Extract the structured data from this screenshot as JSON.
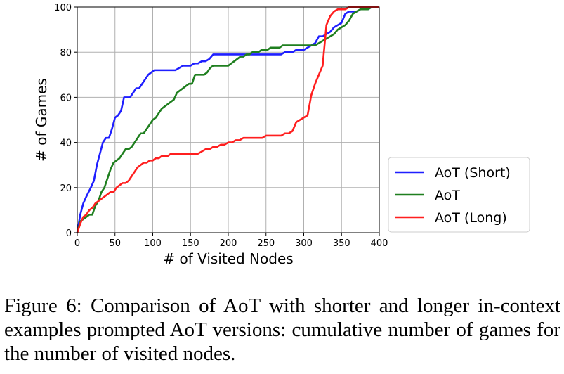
{
  "caption": "Figure 6: Comparison of AoT with shorter and longer in-context examples prompted AoT versions: cumulative number of games for the number of visited nodes.",
  "chart_data": {
    "type": "line",
    "xlabel": "# of Visited Nodes",
    "ylabel": "# of Games",
    "xlim": [
      0,
      400
    ],
    "ylim": [
      0,
      100
    ],
    "xticks": [
      0,
      50,
      100,
      150,
      200,
      250,
      300,
      350,
      400
    ],
    "yticks": [
      0,
      20,
      40,
      60,
      80,
      100
    ],
    "grid": true,
    "legend_position": "outside-right-bottom",
    "series": [
      {
        "name": "AoT (Short)",
        "color": "#1f1fff",
        "x": [
          0,
          4,
          8,
          12,
          18,
          22,
          26,
          30,
          34,
          38,
          42,
          46,
          50,
          54,
          58,
          62,
          66,
          70,
          74,
          78,
          82,
          86,
          90,
          94,
          98,
          102,
          106,
          110,
          114,
          118,
          122,
          126,
          130,
          140,
          150,
          155,
          160,
          165,
          170,
          175,
          180,
          185,
          190,
          195,
          200,
          210,
          220,
          230,
          240,
          250,
          260,
          270,
          275,
          280,
          285,
          290,
          295,
          300,
          305,
          310,
          315,
          320,
          325,
          330,
          335,
          340,
          345,
          350,
          355,
          360,
          365,
          370,
          375,
          380,
          385,
          390,
          395,
          400
        ],
        "y": [
          0,
          8,
          13,
          16,
          20,
          23,
          30,
          35,
          40,
          42,
          42,
          46,
          51,
          52,
          54,
          60,
          60,
          60,
          62,
          64,
          64,
          66,
          68,
          70,
          71,
          72,
          72,
          72,
          72,
          72,
          72,
          72,
          72,
          74,
          74,
          75,
          75,
          76,
          76,
          77,
          79,
          79,
          79,
          79,
          79,
          79,
          79,
          79,
          79,
          79,
          79,
          79,
          80,
          80,
          80,
          81,
          81,
          81,
          82,
          83,
          84,
          87,
          87,
          88,
          89,
          91,
          92,
          93,
          97,
          98,
          98,
          98,
          99,
          99,
          99,
          100,
          100,
          100
        ]
      },
      {
        "name": "AoT",
        "color": "#1f7f1f",
        "x": [
          0,
          4,
          8,
          12,
          16,
          20,
          24,
          28,
          32,
          36,
          40,
          44,
          48,
          52,
          56,
          60,
          64,
          68,
          72,
          76,
          80,
          84,
          88,
          92,
          96,
          100,
          104,
          108,
          112,
          116,
          120,
          124,
          128,
          132,
          136,
          140,
          144,
          148,
          152,
          156,
          160,
          164,
          168,
          172,
          176,
          180,
          184,
          188,
          192,
          196,
          200,
          204,
          208,
          212,
          216,
          220,
          224,
          228,
          232,
          236,
          240,
          244,
          248,
          252,
          256,
          260,
          264,
          268,
          272,
          276,
          280,
          285,
          290,
          295,
          300,
          305,
          310,
          315,
          320,
          325,
          330,
          335,
          340,
          345,
          350,
          355,
          360,
          365,
          370,
          375,
          380,
          385,
          390,
          395,
          400
        ],
        "y": [
          0,
          5,
          6,
          7,
          8,
          8,
          12,
          14,
          18,
          20,
          24,
          28,
          31,
          32,
          33,
          35,
          37,
          37,
          38,
          40,
          42,
          44,
          44,
          46,
          48,
          50,
          51,
          53,
          55,
          56,
          57,
          58,
          59,
          62,
          63,
          64,
          65,
          66,
          66,
          70,
          70,
          70,
          70,
          71,
          73,
          74,
          74,
          74,
          74,
          74,
          74,
          75,
          76,
          77,
          78,
          78,
          79,
          79,
          80,
          80,
          80,
          81,
          81,
          81,
          82,
          82,
          82,
          82,
          83,
          83,
          83,
          83,
          83,
          83,
          83,
          83,
          83,
          83,
          84,
          85,
          86,
          87,
          88,
          90,
          91,
          92,
          94,
          97,
          98,
          99,
          99,
          99,
          100,
          100,
          100
        ]
      },
      {
        "name": "AoT (Long)",
        "color": "#ff1f1f",
        "x": [
          0,
          4,
          8,
          12,
          16,
          20,
          24,
          28,
          32,
          36,
          40,
          44,
          48,
          52,
          56,
          60,
          64,
          68,
          72,
          76,
          80,
          84,
          88,
          92,
          96,
          100,
          104,
          108,
          112,
          116,
          120,
          124,
          128,
          132,
          140,
          150,
          160,
          165,
          170,
          175,
          180,
          185,
          190,
          195,
          200,
          205,
          210,
          215,
          220,
          225,
          230,
          235,
          240,
          245,
          250,
          255,
          260,
          265,
          270,
          275,
          280,
          285,
          290,
          295,
          300,
          305,
          310,
          315,
          320,
          325,
          330,
          335,
          340,
          345,
          350,
          355,
          360,
          365,
          370,
          375,
          380,
          385,
          390,
          395,
          400
        ],
        "y": [
          0,
          4,
          7,
          8,
          10,
          11,
          13,
          14,
          15,
          16,
          17,
          18,
          18,
          20,
          21,
          22,
          22,
          23,
          25,
          27,
          29,
          30,
          31,
          31,
          32,
          32,
          33,
          33,
          34,
          34,
          34,
          35,
          35,
          35,
          35,
          35,
          35,
          36,
          37,
          37,
          38,
          38,
          39,
          39,
          40,
          40,
          41,
          41,
          42,
          42,
          42,
          42,
          42,
          42,
          43,
          43,
          43,
          43,
          43,
          44,
          44,
          45,
          49,
          50,
          51,
          52,
          61,
          66,
          70,
          74,
          92,
          96,
          98,
          99,
          99,
          99,
          100,
          100,
          100,
          100,
          100,
          100,
          100,
          100,
          100
        ]
      }
    ]
  }
}
